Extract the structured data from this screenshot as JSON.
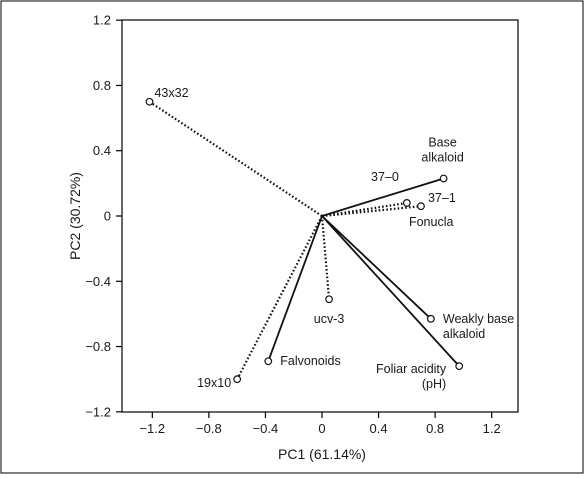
{
  "chart_data": {
    "type": "scatter",
    "subtype": "pca-biplot",
    "xlabel": "PC1 (61.14%)",
    "ylabel": "PC2 (30.72%)",
    "xlim": [
      -1.4,
      1.4
    ],
    "ylim": [
      -1.2,
      1.2
    ],
    "xticks": [
      "−1.2",
      "−0.8",
      "−0.4",
      "0",
      "0.4",
      "0.8",
      "1.2"
    ],
    "yticks": [
      "1.2",
      "0.8",
      "0.4",
      "0",
      "−0.4",
      "−0.8",
      "−1.2"
    ],
    "grid": false,
    "series": [
      {
        "style": "solid",
        "points": [
          {
            "label": "Base alkaloid",
            "x": 0.86,
            "y": 0.23
          },
          {
            "label": "Weakly base alkaloid",
            "x": 0.77,
            "y": -0.63
          },
          {
            "label": "Foliar acidity (pH)",
            "x": 0.97,
            "y": -0.92
          },
          {
            "label": "Falvonoids",
            "x": -0.38,
            "y": -0.89
          },
          {
            "label": "Fonucla",
            "x": 0.7,
            "y": 0.06
          }
        ]
      },
      {
        "style": "dotted",
        "points": [
          {
            "label": "43x32",
            "x": -1.22,
            "y": 0.7
          },
          {
            "label": "37–0",
            "x": 0.6,
            "y": 0.08
          },
          {
            "label": "37–1",
            "x": 0.7,
            "y": 0.06
          },
          {
            "label": "ucv-3",
            "x": 0.05,
            "y": -0.51
          },
          {
            "label": "19x10",
            "x": -0.6,
            "y": -1.0
          }
        ]
      }
    ]
  }
}
